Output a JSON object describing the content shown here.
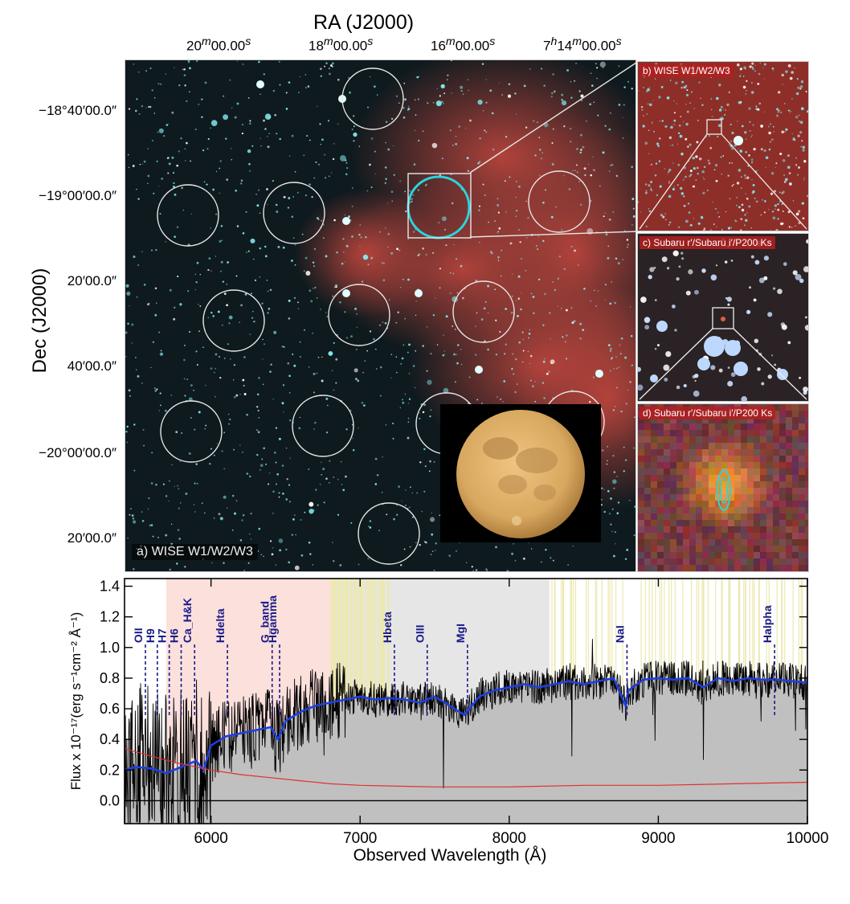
{
  "ra": {
    "title": "RA (J2000)",
    "ticks": [
      {
        "label": "20<sup>m</sup>00.00<sup>s</sup>",
        "m": "20",
        "s": "00.00"
      },
      {
        "m": "18",
        "s": "00.00"
      },
      {
        "m": "16",
        "s": "00.00"
      },
      {
        "h": "7",
        "m": "14",
        "s": "00.00"
      }
    ]
  },
  "dec": {
    "title": "Dec (J2000)",
    "ticks": [
      "−18°40′00.0″",
      "−19°00′00.0″",
      "20′00.0″",
      "40′00.0″",
      "−20°00′00.0″",
      "20′00.0″"
    ]
  },
  "panels": {
    "a": "a) WISE W1/W2/W3",
    "b": "b) WISE W1/W2/W3",
    "c": "c) Subaru r′/Subaru i′/P200 Ks",
    "d": "d) Subaru r′/Subaru i′/P200 Ks"
  },
  "colors": {
    "sky_dark": "#0e1a1e",
    "nebula": "#b8443c",
    "star": "#7fe8ee",
    "circle": "#e8e8e8",
    "cyan_circle": "#2ad4e0",
    "moon": "#d8a860",
    "spectrum": "#000000",
    "model": "#1f3fe0",
    "error": "#e03030",
    "line_label": "#1a1a8a",
    "shade_grey": "#c0c0c0",
    "shade_pink": "#fbe0dc",
    "tell_yellow": "#ece8b0"
  },
  "chart_data": {
    "type": "line",
    "xlabel": "Observed Wavelength (Å)",
    "ylabel": "Flux x 10⁻¹⁷(erg s⁻¹cm⁻² Å⁻¹)",
    "xlim": [
      5420,
      10000
    ],
    "ylim": [
      -0.15,
      1.45
    ],
    "xticks": [
      6000,
      7000,
      8000,
      9000,
      10000
    ],
    "yticks": [
      0.0,
      0.2,
      0.4,
      0.6,
      0.8,
      1.0,
      1.2,
      1.4
    ],
    "lines": [
      {
        "name": "OII",
        "x": 5560
      },
      {
        "name": "H9",
        "x": 5640
      },
      {
        "name": "H7",
        "x": 5720
      },
      {
        "name": "H6",
        "x": 5800
      },
      {
        "name": "Ca_H&K",
        "x": 5890
      },
      {
        "name": "Hdelta",
        "x": 6110
      },
      {
        "name": "G_band",
        "x": 6410
      },
      {
        "name": "Hgamma",
        "x": 6460
      },
      {
        "name": "Hbeta",
        "x": 7230
      },
      {
        "name": "OIII",
        "x": 7450
      },
      {
        "name": "MgI",
        "x": 7720
      },
      {
        "name": "NaI",
        "x": 8790
      },
      {
        "name": "Halpha",
        "x": 9780
      }
    ],
    "model_series": {
      "name": "",
      "x": [
        5420,
        5500,
        5600,
        5700,
        5800,
        5900,
        5950,
        6000,
        6100,
        6200,
        6300,
        6400,
        6450,
        6500,
        6600,
        6700,
        6800,
        6900,
        7000,
        7100,
        7200,
        7300,
        7400,
        7500,
        7600,
        7700,
        7800,
        7900,
        8000,
        8100,
        8200,
        8300,
        8400,
        8500,
        8600,
        8700,
        8780,
        8800,
        8900,
        9000,
        9100,
        9200,
        9300,
        9400,
        9500,
        9600,
        9700,
        9800,
        9900,
        10000
      ],
      "y": [
        0.2,
        0.22,
        0.21,
        0.18,
        0.22,
        0.26,
        0.2,
        0.36,
        0.42,
        0.44,
        0.46,
        0.48,
        0.4,
        0.52,
        0.58,
        0.62,
        0.64,
        0.66,
        0.68,
        0.66,
        0.67,
        0.66,
        0.64,
        0.68,
        0.62,
        0.56,
        0.68,
        0.72,
        0.74,
        0.76,
        0.74,
        0.76,
        0.78,
        0.76,
        0.78,
        0.8,
        0.62,
        0.72,
        0.79,
        0.8,
        0.79,
        0.8,
        0.74,
        0.8,
        0.78,
        0.8,
        0.79,
        0.79,
        0.78,
        0.77
      ]
    },
    "error_series": {
      "name": "",
      "x": [
        5420,
        5600,
        5800,
        6000,
        6200,
        6400,
        6600,
        6800,
        7000,
        7500,
        8000,
        8500,
        9000,
        9500,
        10000
      ],
      "y": [
        0.34,
        0.29,
        0.24,
        0.2,
        0.17,
        0.15,
        0.13,
        0.11,
        0.1,
        0.09,
        0.09,
        0.1,
        0.1,
        0.11,
        0.12
      ]
    }
  }
}
